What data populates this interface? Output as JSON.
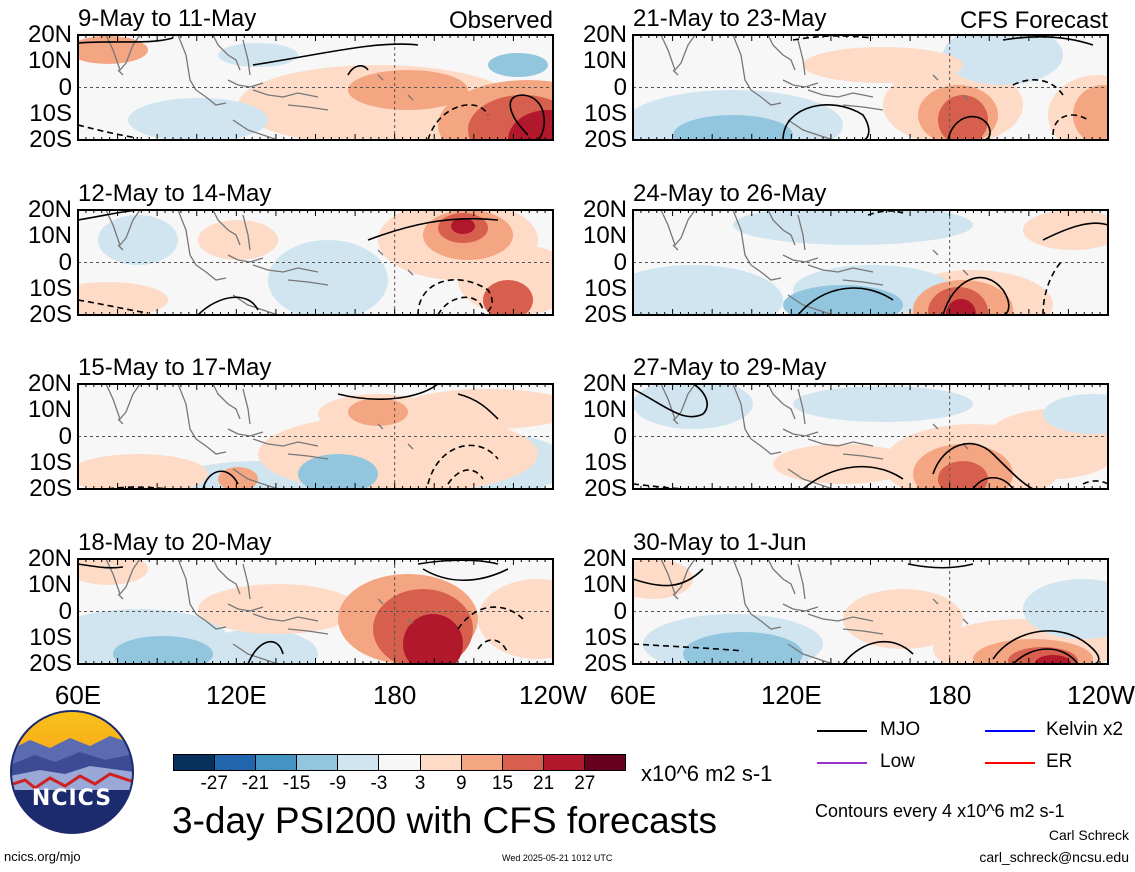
{
  "panels": [
    {
      "title": "9-May to 11-May",
      "corner": "Observed"
    },
    {
      "title": "12-May to 14-May",
      "corner": ""
    },
    {
      "title": "15-May to 17-May",
      "corner": ""
    },
    {
      "title": "18-May to 20-May",
      "corner": ""
    },
    {
      "title": "21-May to 23-May",
      "corner": "CFS Forecast"
    },
    {
      "title": "24-May to 26-May",
      "corner": ""
    },
    {
      "title": "27-May to 29-May",
      "corner": ""
    },
    {
      "title": "30-May to 1-Jun",
      "corner": ""
    }
  ],
  "lat_labels": [
    "20N",
    "10N",
    "0",
    "10S",
    "20S"
  ],
  "lon_labels": [
    "60E",
    "120E",
    "180",
    "120W"
  ],
  "colorbar": {
    "labels": [
      "-27",
      "-21",
      "-15",
      "-9",
      "-3",
      "3",
      "9",
      "15",
      "21",
      "27"
    ],
    "units": "x10^6 m2 s-1",
    "colors": [
      "#08305c",
      "#2166ac",
      "#4393c3",
      "#92c5de",
      "#d1e5f0",
      "#f7f7f7",
      "#fddbc7",
      "#f4a582",
      "#d6604d",
      "#b2182b",
      "#67001f"
    ]
  },
  "legend": {
    "items": [
      {
        "label": "MJO",
        "color": "#000000"
      },
      {
        "label": "Kelvin x2",
        "color": "#0000ff"
      },
      {
        "label": "Low",
        "color": "#9932cc"
      },
      {
        "label": "ER",
        "color": "#ff0000"
      }
    ],
    "contour_note": "Contours every 4 x10^6 m2 s-1"
  },
  "main_title": "3-day PSI200 with CFS forecasts",
  "logo_text": "NCICS",
  "footer": {
    "url": "ncics.org/mjo",
    "timestamp": "Wed 2025-05-21 1012 UTC",
    "author": "Carl Schreck",
    "email": "carl_schreck@ncsu.edu"
  }
}
